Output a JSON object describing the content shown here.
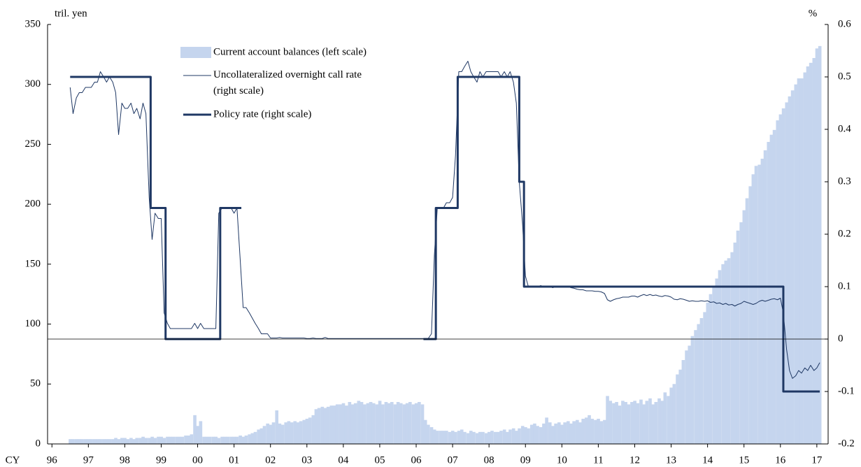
{
  "chart_data": {
    "type": "combo",
    "ylabel": "tril. yen",
    "y2label": "%",
    "xlabel": "CY",
    "xlim": [
      1995.88,
      2017.31
    ],
    "xticks": [
      {
        "value": 1996,
        "label": "96"
      },
      {
        "value": 1997,
        "label": "97"
      },
      {
        "value": 1998,
        "label": "98"
      },
      {
        "value": 1999,
        "label": "99"
      },
      {
        "value": 2000,
        "label": "00"
      },
      {
        "value": 2001,
        "label": "01"
      },
      {
        "value": 2002,
        "label": "02"
      },
      {
        "value": 2003,
        "label": "03"
      },
      {
        "value": 2004,
        "label": "04"
      },
      {
        "value": 2005,
        "label": "05"
      },
      {
        "value": 2006,
        "label": "06"
      },
      {
        "value": 2007,
        "label": "07"
      },
      {
        "value": 2008,
        "label": "08"
      },
      {
        "value": 2009,
        "label": "09"
      },
      {
        "value": 2010,
        "label": "10"
      },
      {
        "value": 2011,
        "label": "11"
      },
      {
        "value": 2012,
        "label": "12"
      },
      {
        "value": 2013,
        "label": "13"
      },
      {
        "value": 2014,
        "label": "14"
      },
      {
        "value": 2015,
        "label": "15"
      },
      {
        "value": 2016,
        "label": "16"
      },
      {
        "value": 2017,
        "label": "17"
      }
    ],
    "ylim": [
      0,
      350
    ],
    "yticks": [
      0,
      50,
      100,
      150,
      200,
      250,
      300,
      350
    ],
    "y2lim": [
      -0.2,
      0.6
    ],
    "y2ticks": [
      -0.2,
      -0.1,
      0,
      0.1,
      0.2,
      0.3,
      0.4,
      0.5,
      0.6
    ],
    "zero_line": true,
    "grid": false,
    "legend": "top-left",
    "x": [
      1996.5,
      1996.58,
      1996.67,
      1996.75,
      1996.83,
      1996.92,
      1997.0,
      1997.08,
      1997.17,
      1997.25,
      1997.33,
      1997.42,
      1997.5,
      1997.58,
      1997.67,
      1997.75,
      1997.83,
      1997.92,
      1998.0,
      1998.08,
      1998.17,
      1998.25,
      1998.33,
      1998.42,
      1998.5,
      1998.58,
      1998.67,
      1998.75,
      1998.83,
      1998.92,
      1999.0,
      1999.08,
      1999.17,
      1999.25,
      1999.33,
      1999.42,
      1999.5,
      1999.58,
      1999.67,
      1999.75,
      1999.83,
      1999.92,
      2000.0,
      2000.08,
      2000.17,
      2000.25,
      2000.33,
      2000.42,
      2000.5,
      2000.58,
      2000.67,
      2000.75,
      2000.83,
      2000.92,
      2001.0,
      2001.08,
      2001.17,
      2001.25,
      2001.33,
      2001.42,
      2001.5,
      2001.58,
      2001.67,
      2001.75,
      2001.83,
      2001.92,
      2002.0,
      2002.08,
      2002.17,
      2002.25,
      2002.33,
      2002.42,
      2002.5,
      2002.58,
      2002.67,
      2002.75,
      2002.83,
      2002.92,
      2003.0,
      2003.08,
      2003.17,
      2003.25,
      2003.33,
      2003.42,
      2003.5,
      2003.58,
      2003.67,
      2003.75,
      2003.83,
      2003.92,
      2004.0,
      2004.08,
      2004.17,
      2004.25,
      2004.33,
      2004.42,
      2004.5,
      2004.58,
      2004.67,
      2004.75,
      2004.83,
      2004.92,
      2005.0,
      2005.08,
      2005.17,
      2005.25,
      2005.33,
      2005.42,
      2005.5,
      2005.58,
      2005.67,
      2005.75,
      2005.83,
      2005.92,
      2006.0,
      2006.08,
      2006.17,
      2006.25,
      2006.33,
      2006.42,
      2006.5,
      2006.58,
      2006.67,
      2006.75,
      2006.83,
      2006.92,
      2007.0,
      2007.08,
      2007.17,
      2007.25,
      2007.33,
      2007.42,
      2007.5,
      2007.58,
      2007.67,
      2007.75,
      2007.83,
      2007.92,
      2008.0,
      2008.08,
      2008.17,
      2008.25,
      2008.33,
      2008.42,
      2008.5,
      2008.58,
      2008.67,
      2008.75,
      2008.83,
      2008.92,
      2009.0,
      2009.08,
      2009.17,
      2009.25,
      2009.33,
      2009.42,
      2009.5,
      2009.58,
      2009.67,
      2009.75,
      2009.83,
      2009.92,
      2010.0,
      2010.08,
      2010.17,
      2010.25,
      2010.33,
      2010.42,
      2010.5,
      2010.58,
      2010.67,
      2010.75,
      2010.83,
      2010.92,
      2011.0,
      2011.08,
      2011.17,
      2011.25,
      2011.33,
      2011.42,
      2011.5,
      2011.58,
      2011.67,
      2011.75,
      2011.83,
      2011.92,
      2012.0,
      2012.08,
      2012.17,
      2012.25,
      2012.33,
      2012.42,
      2012.5,
      2012.58,
      2012.67,
      2012.75,
      2012.83,
      2012.92,
      2013.0,
      2013.08,
      2013.17,
      2013.25,
      2013.33,
      2013.42,
      2013.5,
      2013.58,
      2013.67,
      2013.75,
      2013.83,
      2013.92,
      2014.0,
      2014.08,
      2014.17,
      2014.25,
      2014.33,
      2014.42,
      2014.5,
      2014.58,
      2014.67,
      2014.75,
      2014.83,
      2014.92,
      2015.0,
      2015.08,
      2015.17,
      2015.25,
      2015.33,
      2015.42,
      2015.5,
      2015.58,
      2015.67,
      2015.75,
      2015.83,
      2015.92,
      2016.0,
      2016.08,
      2016.17,
      2016.25,
      2016.33,
      2016.42,
      2016.5,
      2016.58,
      2016.67,
      2016.75,
      2016.83,
      2016.92,
      2017.0,
      2017.08
    ],
    "series": [
      {
        "name": "Current account balances (left scale)",
        "type": "bar",
        "color": "#c5d5ee",
        "values": [
          4,
          4,
          4,
          4,
          4,
          4,
          4,
          4,
          4,
          4,
          4,
          4,
          4,
          4,
          4,
          5,
          4,
          5,
          5,
          4,
          5,
          4,
          5,
          5,
          6,
          5,
          5,
          6,
          5,
          6,
          6,
          5,
          6,
          6,
          6,
          6,
          6,
          6,
          7,
          7,
          8,
          24,
          15,
          19,
          6,
          6,
          6,
          6,
          6,
          5,
          6,
          6,
          6,
          6,
          6,
          6,
          7,
          6,
          7,
          8,
          9,
          10,
          12,
          13,
          15,
          17,
          16,
          18,
          28,
          17,
          16,
          18,
          19,
          18,
          19,
          18,
          19,
          20,
          21,
          22,
          24,
          29,
          30,
          31,
          30,
          31,
          32,
          32,
          33,
          33,
          34,
          32,
          35,
          33,
          34,
          36,
          35,
          33,
          34,
          35,
          34,
          33,
          36,
          33,
          35,
          34,
          35,
          33,
          35,
          34,
          33,
          34,
          35,
          33,
          34,
          35,
          33,
          20,
          16,
          14,
          12,
          11,
          11,
          11,
          11,
          10,
          11,
          10,
          11,
          12,
          10,
          9,
          11,
          10,
          9,
          10,
          10,
          9,
          10,
          11,
          10,
          10,
          11,
          12,
          10,
          12,
          13,
          11,
          13,
          15,
          14,
          13,
          16,
          17,
          15,
          14,
          17,
          22,
          18,
          15,
          17,
          18,
          16,
          18,
          19,
          17,
          19,
          20,
          18,
          21,
          22,
          24,
          21,
          20,
          21,
          19,
          20,
          40,
          36,
          34,
          35,
          32,
          36,
          35,
          33,
          35,
          36,
          34,
          37,
          33,
          36,
          38,
          33,
          35,
          38,
          36,
          43,
          40,
          47,
          50,
          58,
          62,
          70,
          78,
          82,
          90,
          95,
          100,
          105,
          110,
          118,
          125,
          132,
          138,
          145,
          150,
          153,
          155,
          160,
          168,
          178,
          185,
          195,
          205,
          215,
          225,
          232,
          233,
          238,
          245,
          252,
          258,
          262,
          270,
          275,
          280,
          285,
          290,
          295,
          300,
          305,
          305,
          310,
          315,
          318,
          322,
          330,
          332
        ]
      },
      {
        "name": "Uncollateralized overnight call rate (right scale)",
        "type": "line",
        "axis": "y2",
        "color": "#1f3864",
        "line_width": 1,
        "values": [
          0.48,
          0.43,
          0.46,
          0.47,
          0.47,
          0.48,
          0.48,
          0.48,
          0.49,
          0.49,
          0.51,
          0.5,
          0.49,
          0.5,
          0.49,
          0.47,
          0.39,
          0.45,
          0.44,
          0.44,
          0.45,
          0.43,
          0.44,
          0.42,
          0.45,
          0.43,
          0.27,
          0.19,
          0.24,
          0.23,
          0.23,
          0.05,
          0.03,
          0.02,
          0.02,
          0.02,
          0.02,
          0.02,
          0.02,
          0.02,
          0.02,
          0.03,
          0.02,
          0.03,
          0.02,
          0.02,
          0.02,
          0.02,
          0.02,
          0.24,
          0.25,
          0.25,
          0.25,
          0.25,
          0.24,
          0.25,
          0.15,
          0.06,
          0.06,
          0.05,
          0.04,
          0.03,
          0.02,
          0.01,
          0.01,
          0.01,
          0.002,
          0.002,
          0.002,
          0.003,
          0.002,
          0.002,
          0.002,
          0.002,
          0.002,
          0.002,
          0.002,
          0.002,
          0.001,
          0.001,
          0.002,
          0.001,
          0.001,
          0.001,
          0.003,
          0.001,
          0.001,
          0.001,
          0.001,
          0.001,
          0.001,
          0.001,
          0.001,
          0.001,
          0.001,
          0.001,
          0.001,
          0.001,
          0.001,
          0.001,
          0.001,
          0.001,
          0.001,
          0.001,
          0.001,
          0.001,
          0.001,
          0.001,
          0.001,
          0.001,
          0.001,
          0.001,
          0.001,
          0.001,
          0.001,
          0.001,
          0.001,
          0.001,
          0.001,
          0.01,
          0.16,
          0.25,
          0.25,
          0.25,
          0.26,
          0.26,
          0.27,
          0.35,
          0.51,
          0.51,
          0.52,
          0.53,
          0.51,
          0.5,
          0.49,
          0.51,
          0.5,
          0.51,
          0.51,
          0.51,
          0.51,
          0.51,
          0.5,
          0.51,
          0.5,
          0.51,
          0.49,
          0.45,
          0.3,
          0.22,
          0.12,
          0.1,
          0.1,
          0.101,
          0.1,
          0.102,
          0.1,
          0.099,
          0.1,
          0.098,
          0.1,
          0.099,
          0.1,
          0.1,
          0.1,
          0.098,
          0.097,
          0.095,
          0.094,
          0.094,
          0.092,
          0.092,
          0.092,
          0.091,
          0.091,
          0.09,
          0.087,
          0.075,
          0.072,
          0.075,
          0.077,
          0.078,
          0.08,
          0.08,
          0.08,
          0.082,
          0.082,
          0.08,
          0.083,
          0.085,
          0.083,
          0.085,
          0.083,
          0.084,
          0.082,
          0.081,
          0.083,
          0.082,
          0.08,
          0.076,
          0.075,
          0.077,
          0.076,
          0.074,
          0.072,
          0.073,
          0.072,
          0.072,
          0.073,
          0.072,
          0.073,
          0.07,
          0.071,
          0.068,
          0.069,
          0.066,
          0.068,
          0.065,
          0.066,
          0.063,
          0.066,
          0.068,
          0.072,
          0.07,
          0.068,
          0.066,
          0.068,
          0.072,
          0.074,
          0.072,
          0.074,
          0.076,
          0.077,
          0.075,
          0.078,
          0.05,
          -0.02,
          -0.06,
          -0.075,
          -0.07,
          -0.06,
          -0.065,
          -0.055,
          -0.06,
          -0.05,
          -0.06,
          -0.055,
          -0.045
        ]
      },
      {
        "name": "Policy rate (right scale)",
        "type": "line",
        "axis": "y2",
        "color": "#1f3864",
        "line_width": 3,
        "x": [
          1996.5,
          1998.71,
          1998.71,
          1999.12,
          1999.12,
          2000.62,
          2000.62,
          2001.2,
          2001.2,
          2006.2,
          2006.54,
          2006.54,
          2007.14,
          2007.14,
          2008.83,
          2008.83,
          2008.96,
          2008.96,
          2016.08,
          2016.08,
          2017.08
        ],
        "values": [
          0.5,
          0.5,
          0.25,
          0.25,
          0,
          0,
          0.25,
          0.25,
          null,
          0,
          0,
          0.25,
          0.25,
          0.5,
          0.5,
          0.3,
          0.3,
          0.1,
          0.1,
          -0.1,
          -0.1
        ]
      }
    ]
  }
}
